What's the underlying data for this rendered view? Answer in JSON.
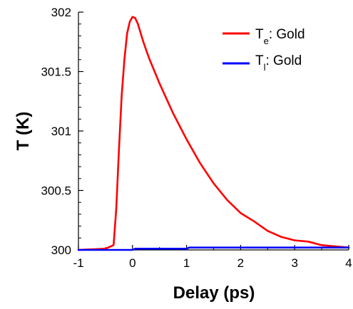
{
  "chart_data": {
    "type": "line",
    "xlabel": "Delay (ps)",
    "ylabel": "T (K)",
    "xlim": [
      -1,
      4
    ],
    "ylim": [
      300,
      302
    ],
    "xticks": [
      -1,
      0,
      1,
      2,
      3,
      4
    ],
    "xtick_labels": [
      "-1",
      "0",
      "1",
      "2",
      "3",
      "4"
    ],
    "yticks": [
      300,
      300.5,
      301,
      301.5,
      302
    ],
    "ytick_labels": [
      "300",
      "300.5",
      "301",
      "301.5",
      "302"
    ],
    "grid": false,
    "legend_position": "top-right",
    "series": [
      {
        "name_main": "T",
        "name_sub": "e",
        "name_rest": ": Gold",
        "color": "#ff0000",
        "x": [
          -1.0,
          -0.5,
          -0.35,
          -0.3,
          -0.25,
          -0.2,
          -0.15,
          -0.1,
          -0.05,
          0.0,
          0.05,
          0.1,
          0.2,
          0.3,
          0.5,
          0.75,
          1.0,
          1.25,
          1.5,
          1.75,
          2.0,
          2.25,
          2.5,
          2.75,
          3.0,
          3.25,
          3.5,
          3.75,
          4.0
        ],
        "y": [
          300.0,
          300.01,
          300.04,
          300.35,
          300.85,
          301.3,
          301.6,
          301.82,
          301.92,
          301.96,
          301.95,
          301.9,
          301.75,
          301.62,
          301.4,
          301.15,
          300.93,
          300.73,
          300.56,
          300.42,
          300.31,
          300.24,
          300.16,
          300.11,
          300.08,
          300.07,
          300.04,
          300.03,
          300.02
        ]
      },
      {
        "name_main": "T",
        "name_sub": "l",
        "name_rest": ":  Gold",
        "color": "#0000ff",
        "x": [
          -1.0,
          -0.3,
          0.0,
          0.05,
          1.0,
          1.05,
          4.0
        ],
        "y": [
          300.0,
          300.0,
          300.0,
          300.01,
          300.01,
          300.02,
          300.02
        ]
      }
    ]
  }
}
